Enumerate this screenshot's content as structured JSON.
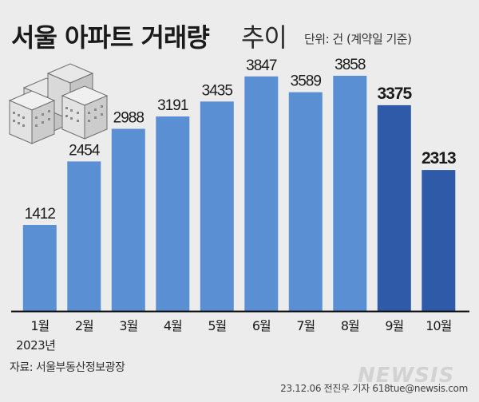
{
  "header": {
    "title_main": "서울 아파트 거래량",
    "title_sub": "추이",
    "unit_note": "단위: 건 (계약일 기준)"
  },
  "footer": {
    "source": "자료: 서울부동산정보광장",
    "credit": "23.12.06 전진우 기자 618tue@newsis.com",
    "watermark": "NEWSIS"
  },
  "chart_data": {
    "type": "bar",
    "title": "서울 아파트 거래량 추이",
    "xlabel": "",
    "ylabel": "",
    "unit": "건",
    "year_label": "2023년",
    "categories": [
      "1월",
      "2월",
      "3월",
      "4월",
      "5월",
      "6월",
      "7월",
      "8월",
      "9월",
      "10월"
    ],
    "values": [
      1412,
      2454,
      2988,
      3191,
      3435,
      3847,
      3589,
      3858,
      3375,
      2313
    ],
    "highlighted": [
      "9월",
      "10월"
    ],
    "colors": {
      "normal": "#5b8fd3",
      "highlight": "#2e5aa8",
      "axis": "#111111"
    },
    "grid": false,
    "legend": "none"
  }
}
